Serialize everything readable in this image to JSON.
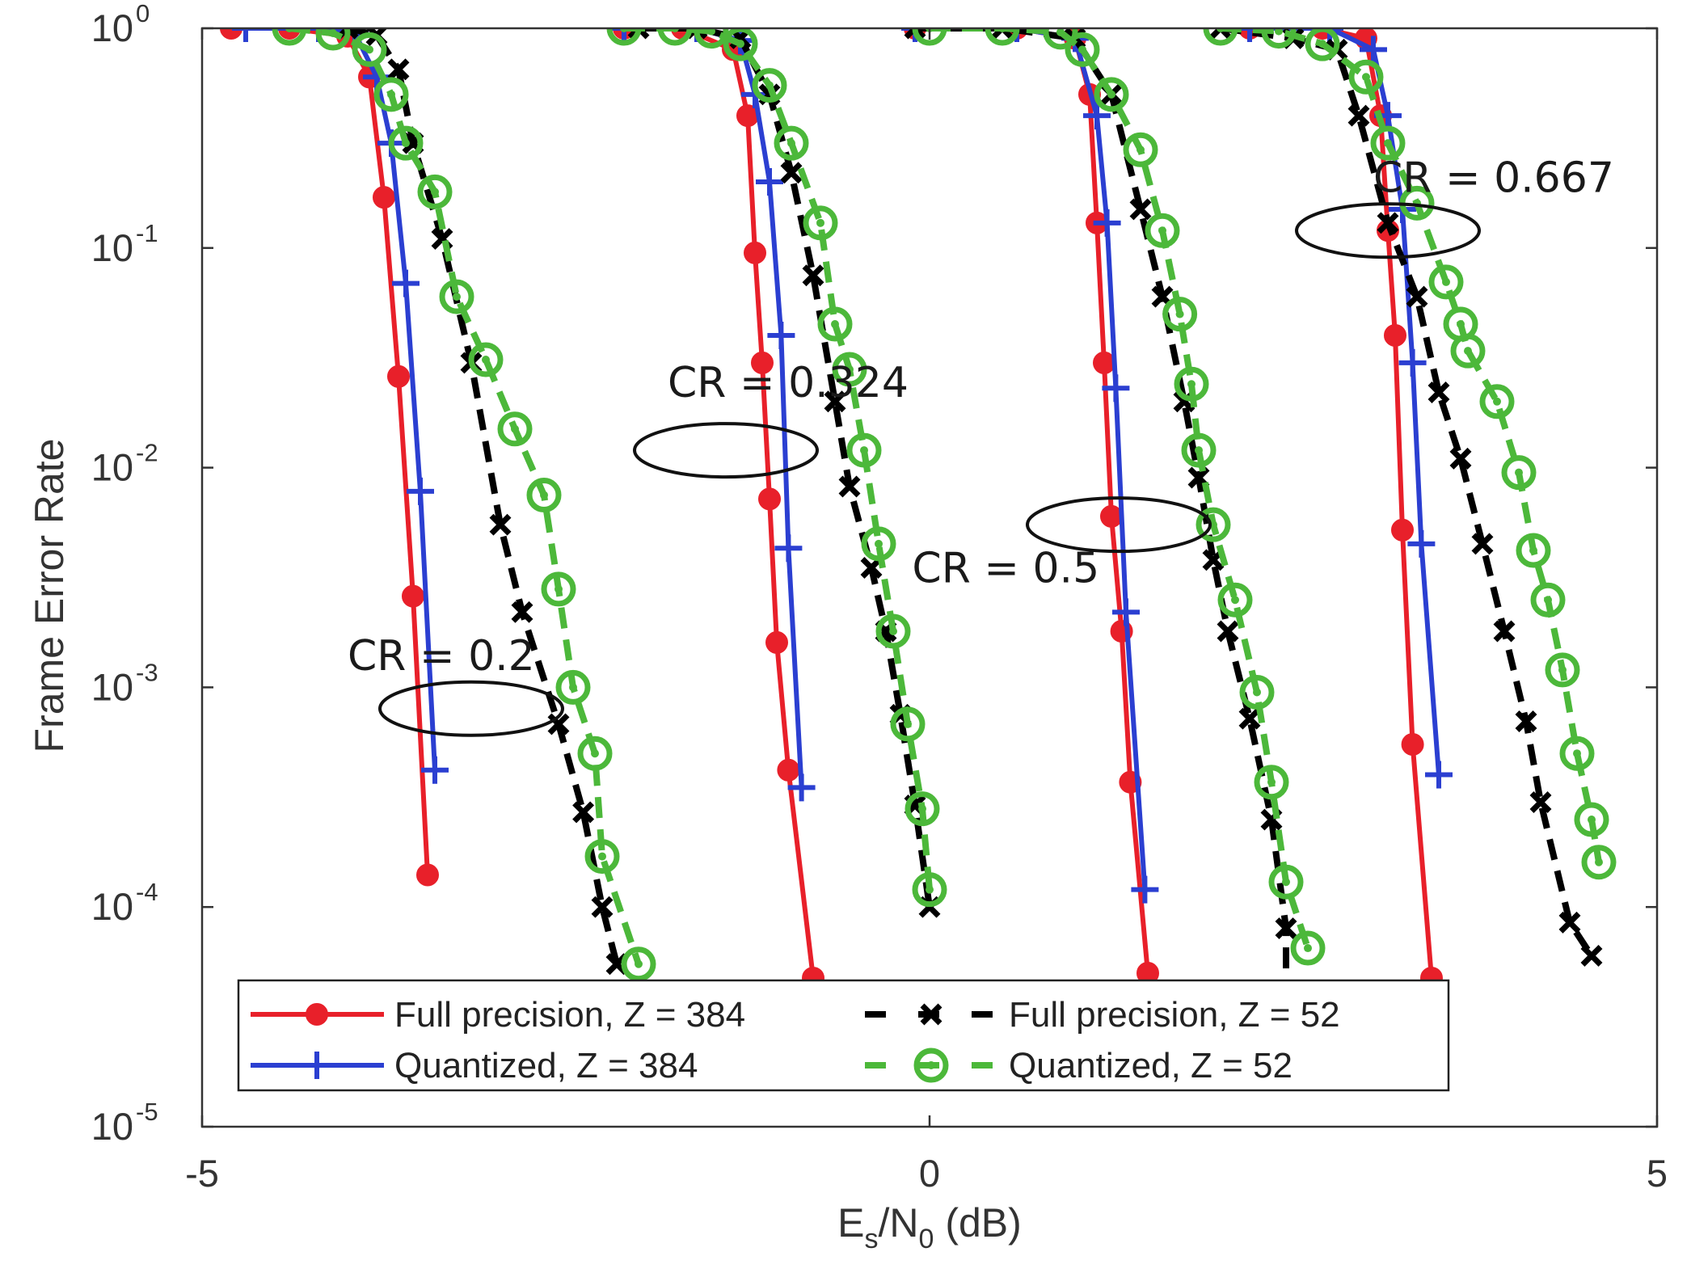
{
  "chart_data": {
    "type": "line",
    "title": "",
    "xlabel": "Es/N0 (dB)",
    "xlabel_parts": {
      "e": "E",
      "e_sub": "s",
      "slash": "/N",
      "n_sub": "0",
      "unit": " (dB)"
    },
    "ylabel": "Frame Error Rate",
    "xlim": [
      -5,
      5
    ],
    "ylim": [
      1e-05,
      1
    ],
    "yscale": "log",
    "grid": false,
    "legend_position": "bottom",
    "x_ticks": [
      "-5",
      "0",
      "5"
    ],
    "y_ticks": [
      {
        "base": "10",
        "exp": "0"
      },
      {
        "base": "10",
        "exp": "-1"
      },
      {
        "base": "10",
        "exp": "-2"
      },
      {
        "base": "10",
        "exp": "-3"
      },
      {
        "base": "10",
        "exp": "-4"
      },
      {
        "base": "10",
        "exp": "-5"
      }
    ],
    "series": [
      {
        "name": "Full precision, Z = 384",
        "color": "#e8202a",
        "marker": "filled-circle",
        "line": "solid",
        "curves": [
          [
            [
              -4.8,
              1
            ],
            [
              -4.4,
              1
            ],
            [
              -4.0,
              0.92
            ],
            [
              -3.85,
              0.6
            ],
            [
              -3.75,
              0.17
            ],
            [
              -3.65,
              0.026
            ],
            [
              -3.55,
              0.0026
            ],
            [
              -3.45,
              0.00014
            ]
          ],
          [
            [
              -2.1,
              1
            ],
            [
              -1.7,
              1
            ],
            [
              -1.35,
              0.8
            ],
            [
              -1.25,
              0.4
            ],
            [
              -1.2,
              0.095
            ],
            [
              -1.15,
              0.03
            ],
            [
              -1.1,
              0.0072
            ],
            [
              -1.05,
              0.0016
            ],
            [
              -0.97,
              0.00042
            ],
            [
              -0.8,
              4.75e-05
            ]
          ],
          [
            [
              -0.1,
              1
            ],
            [
              0.6,
              1
            ],
            [
              1.0,
              0.9
            ],
            [
              1.1,
              0.5
            ],
            [
              1.15,
              0.13
            ],
            [
              1.2,
              0.03
            ],
            [
              1.25,
              0.006
            ],
            [
              1.32,
              0.0018
            ],
            [
              1.38,
              0.00037
            ],
            [
              1.5,
              5e-05
            ]
          ],
          [
            [
              2.2,
              1
            ],
            [
              2.7,
              1
            ],
            [
              3.0,
              0.9
            ],
            [
              3.1,
              0.4
            ],
            [
              3.15,
              0.12
            ],
            [
              3.2,
              0.04
            ],
            [
              3.25,
              0.0052
            ],
            [
              3.32,
              0.00055
            ],
            [
              3.45,
              4.75e-05
            ]
          ]
        ]
      },
      {
        "name": "Quantized, Z = 384",
        "color": "#2b3fd1",
        "marker": "plus",
        "line": "solid",
        "curves": [
          [
            [
              -4.7,
              1
            ],
            [
              -4.2,
              1
            ],
            [
              -3.95,
              0.95
            ],
            [
              -3.8,
              0.6
            ],
            [
              -3.7,
              0.3
            ],
            [
              -3.6,
              0.069
            ],
            [
              -3.5,
              0.0078
            ],
            [
              -3.4,
              0.00042
            ]
          ],
          [
            [
              -2.1,
              1
            ],
            [
              -1.6,
              1
            ],
            [
              -1.3,
              0.88
            ],
            [
              -1.2,
              0.5
            ],
            [
              -1.1,
              0.2
            ],
            [
              -1.02,
              0.04
            ],
            [
              -0.97,
              0.0043
            ],
            [
              -0.88,
              0.00035
            ]
          ],
          [
            [
              -0.1,
              1
            ],
            [
              0.6,
              1
            ],
            [
              1.0,
              0.9
            ],
            [
              1.15,
              0.4
            ],
            [
              1.22,
              0.13
            ],
            [
              1.28,
              0.023
            ],
            [
              1.35,
              0.0022
            ],
            [
              1.48,
              0.00012
            ]
          ],
          [
            [
              2.2,
              1
            ],
            [
              2.75,
              1
            ],
            [
              3.05,
              0.8
            ],
            [
              3.15,
              0.4
            ],
            [
              3.25,
              0.15
            ],
            [
              3.32,
              0.03
            ],
            [
              3.38,
              0.0045
            ],
            [
              3.5,
              0.0004
            ]
          ]
        ]
      },
      {
        "name": "Full precision, Z = 52",
        "color": "#000000",
        "marker": "x",
        "line": "dashed",
        "curves": [
          [
            [
              -4.0,
              1
            ],
            [
              -3.8,
              0.93
            ],
            [
              -3.65,
              0.65
            ],
            [
              -3.55,
              0.3
            ],
            [
              -3.35,
              0.11
            ],
            [
              -3.15,
              0.03
            ],
            [
              -2.95,
              0.0055
            ],
            [
              -2.8,
              0.0022
            ],
            [
              -2.55,
              0.00068
            ],
            [
              -2.38,
              0.00027
            ],
            [
              -2.25,
              0.0001
            ],
            [
              -2.15,
              5.5e-05
            ]
          ],
          [
            [
              -2.0,
              1
            ],
            [
              -1.6,
              1
            ],
            [
              -1.3,
              0.9
            ],
            [
              -1.1,
              0.5
            ],
            [
              -0.95,
              0.22
            ],
            [
              -0.8,
              0.075
            ],
            [
              -0.65,
              0.02
            ],
            [
              -0.55,
              0.0082
            ],
            [
              -0.4,
              0.0035
            ],
            [
              -0.3,
              0.0018
            ],
            [
              -0.2,
              0.00075
            ],
            [
              -0.1,
              0.00029
            ],
            [
              0.0,
              0.0001
            ]
          ],
          [
            [
              -0.1,
              1
            ],
            [
              0.5,
              1
            ],
            [
              1.0,
              0.9
            ],
            [
              1.25,
              0.5
            ],
            [
              1.45,
              0.15
            ],
            [
              1.6,
              0.06
            ],
            [
              1.75,
              0.02
            ],
            [
              1.85,
              0.009
            ],
            [
              1.95,
              0.0038
            ],
            [
              2.05,
              0.0018
            ],
            [
              2.2,
              0.00072
            ],
            [
              2.35,
              0.00025
            ],
            [
              2.45,
              8e-05
            ],
            [
              2.45,
              3.5e-05
            ]
          ],
          [
            [
              2.0,
              1
            ],
            [
              2.5,
              0.9
            ],
            [
              2.8,
              0.8
            ],
            [
              2.95,
              0.4
            ],
            [
              3.15,
              0.13
            ],
            [
              3.35,
              0.06
            ],
            [
              3.5,
              0.022
            ],
            [
              3.65,
              0.011
            ],
            [
              3.8,
              0.0045
            ],
            [
              3.95,
              0.0018
            ],
            [
              4.1,
              0.0007
            ],
            [
              4.2,
              0.0003
            ],
            [
              4.4,
              8.5e-05
            ],
            [
              4.55,
              6e-05
            ]
          ]
        ]
      },
      {
        "name": "Quantized, Z = 52",
        "color": "#4cb83a",
        "marker": "open-circle",
        "line": "dashed",
        "curves": [
          [
            [
              -4.4,
              1
            ],
            [
              -4.1,
              0.95
            ],
            [
              -3.85,
              0.8
            ],
            [
              -3.7,
              0.5
            ],
            [
              -3.6,
              0.3
            ],
            [
              -3.4,
              0.18
            ],
            [
              -3.25,
              0.06
            ],
            [
              -3.05,
              0.031
            ],
            [
              -2.85,
              0.015
            ],
            [
              -2.65,
              0.0075
            ],
            [
              -2.55,
              0.0028
            ],
            [
              -2.45,
              0.001
            ],
            [
              -2.3,
              0.0005
            ],
            [
              -2.25,
              0.00017
            ],
            [
              -2.0,
              5.5e-05
            ]
          ],
          [
            [
              -2.1,
              1
            ],
            [
              -1.75,
              1
            ],
            [
              -1.5,
              0.97
            ],
            [
              -1.3,
              0.85
            ],
            [
              -1.1,
              0.55
            ],
            [
              -0.95,
              0.3
            ],
            [
              -0.75,
              0.13
            ],
            [
              -0.65,
              0.045
            ],
            [
              -0.55,
              0.028
            ],
            [
              -0.45,
              0.012
            ],
            [
              -0.35,
              0.0045
            ],
            [
              -0.25,
              0.0018
            ],
            [
              -0.15,
              0.00068
            ],
            [
              -0.05,
              0.00028
            ],
            [
              0.0,
              0.00012
            ]
          ],
          [
            [
              0.0,
              1
            ],
            [
              0.5,
              1
            ],
            [
              0.9,
              0.96
            ],
            [
              1.05,
              0.8
            ],
            [
              1.25,
              0.5
            ],
            [
              1.45,
              0.28
            ],
            [
              1.6,
              0.12
            ],
            [
              1.72,
              0.05
            ],
            [
              1.8,
              0.024
            ],
            [
              1.85,
              0.012
            ],
            [
              1.95,
              0.0055
            ],
            [
              2.1,
              0.0025
            ],
            [
              2.25,
              0.00095
            ],
            [
              2.35,
              0.00037
            ],
            [
              2.45,
              0.00013
            ],
            [
              2.6,
              6.5e-05
            ]
          ],
          [
            [
              2.0,
              1
            ],
            [
              2.4,
              0.97
            ],
            [
              2.7,
              0.85
            ],
            [
              3.0,
              0.6
            ],
            [
              3.15,
              0.3
            ],
            [
              3.35,
              0.16
            ],
            [
              3.55,
              0.07
            ],
            [
              3.65,
              0.045
            ],
            [
              3.7,
              0.034
            ],
            [
              3.9,
              0.02
            ],
            [
              4.05,
              0.0095
            ],
            [
              4.15,
              0.0042
            ],
            [
              4.25,
              0.0025
            ],
            [
              4.35,
              0.0012
            ],
            [
              4.45,
              0.0005
            ],
            [
              4.55,
              0.00025
            ],
            [
              4.6,
              0.00016
            ]
          ]
        ]
      }
    ],
    "annotations": [
      {
        "text": "CR = 0.2",
        "x": -4.0,
        "y": 0.0012
      },
      {
        "text": "CR = 0.324",
        "x": -1.8,
        "y": 0.021
      },
      {
        "text": "CR = 0.5",
        "x": -0.12,
        "y": 0.003
      },
      {
        "text": "CR = 0.667",
        "x": 3.05,
        "y": 0.18
      }
    ],
    "ellipses": [
      {
        "x": -3.15,
        "y": 0.0008
      },
      {
        "x": -1.4,
        "y": 0.012
      },
      {
        "x": 1.3,
        "y": 0.0055
      },
      {
        "x": 3.15,
        "y": 0.12
      }
    ]
  }
}
